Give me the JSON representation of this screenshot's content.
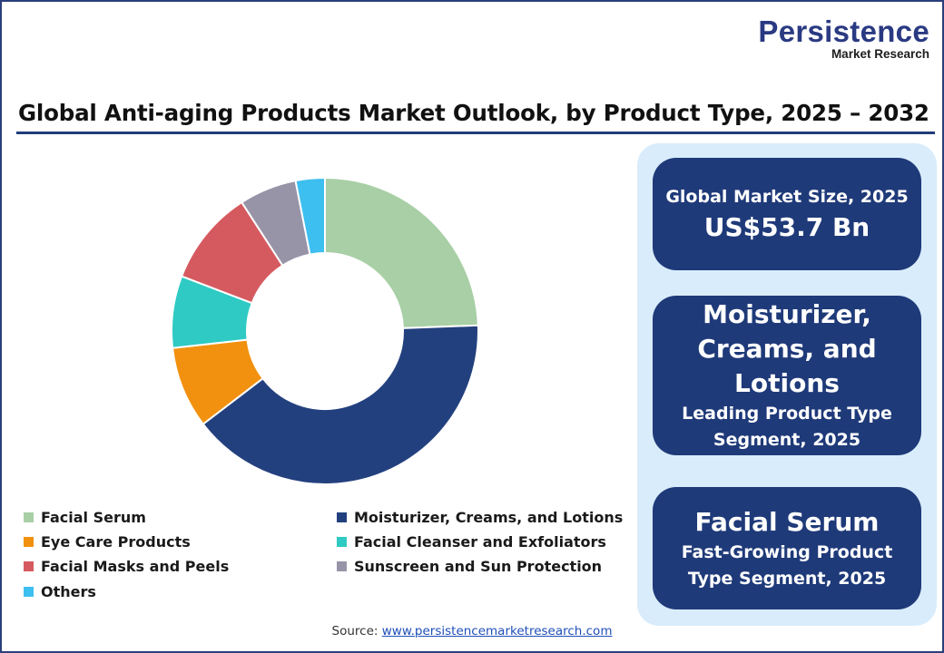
{
  "logo": {
    "main": "Persistence",
    "sub": "Market Research"
  },
  "title": "Global Anti-aging Products Market Outlook, by Product Type, 2025 – 2032",
  "chart_data": {
    "type": "pie",
    "donut": true,
    "categories": [
      "Facial Serum",
      "Moisturizer, Creams, and Lotions",
      "Eye Care Products",
      "Facial Cleanser and Exfoliators",
      "Facial Masks and Peels",
      "Sunscreen and Sun Protection",
      "Others"
    ],
    "values": [
      23.8,
      39.2,
      8.4,
      7.4,
      9.8,
      5.9,
      3.0
    ],
    "colors": [
      "#a8cfa6",
      "#23407e",
      "#f2910f",
      "#2ecac3",
      "#d55a5f",
      "#9794a8",
      "#3dbfef"
    ],
    "legend_placement": "bottom",
    "start_angle_deg": 0,
    "direction": "clockwise"
  },
  "legend": [
    {
      "label": "Facial Serum",
      "color": "#a8cfa6"
    },
    {
      "label": "Moisturizer, Creams, and Lotions",
      "color": "#23407e"
    },
    {
      "label": "Eye Care Products",
      "color": "#f2910f"
    },
    {
      "label": "Facial Cleanser and Exfoliators",
      "color": "#2ecac3"
    },
    {
      "label": "Facial Masks and Peels",
      "color": "#d55a5f"
    },
    {
      "label": "Sunscreen and Sun Protection",
      "color": "#9794a8"
    },
    {
      "label": "Others",
      "color": "#3dbfef"
    }
  ],
  "cards": {
    "market_size": {
      "label": "Global Market Size, 2025",
      "value": "US$53.7 Bn"
    },
    "leading": {
      "line1": "Moisturizer,",
      "line2": "Creams, and",
      "line3": "Lotions",
      "sub1": "Leading Product Type",
      "sub2": "Segment, 2025"
    },
    "fastest": {
      "name": "Facial Serum",
      "sub1": "Fast-Growing Product",
      "sub2": "Type Segment, 2025"
    }
  },
  "source": {
    "prefix": "Source: ",
    "link": "www.persistencemarketresearch.com"
  },
  "colors": {
    "brand": "#2a3a82",
    "card": "#1f3a79",
    "panel": "#d9ecfb",
    "rule": "#213d7a"
  }
}
